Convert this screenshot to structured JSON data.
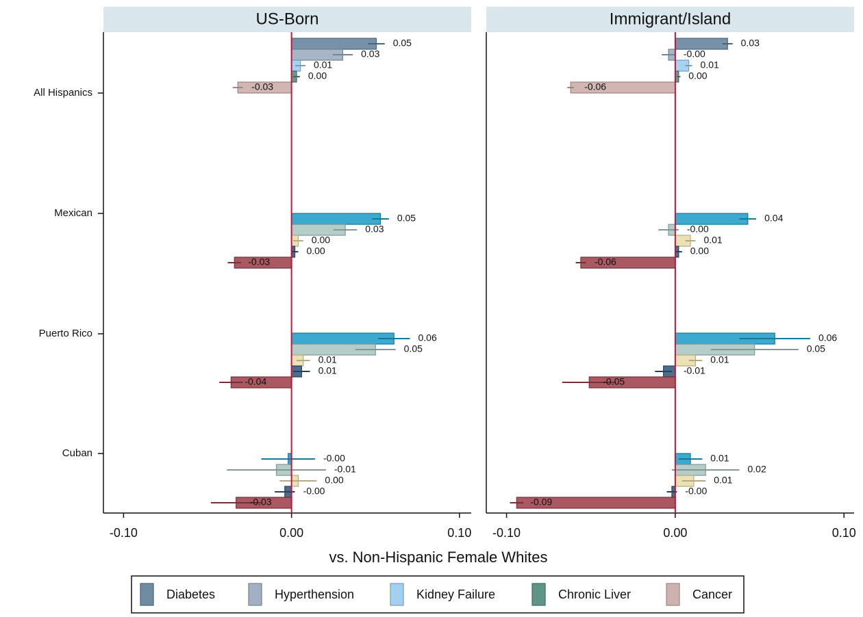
{
  "chart_data": [
    {
      "type": "bar",
      "orientation": "horizontal",
      "title": "US-Born",
      "categories": [
        "All Hispanics",
        "Mexican",
        "Puerto Rico",
        "Cuban"
      ],
      "xlabel": "vs. Non-Hispanic Female Whites",
      "xlim": [
        -0.112,
        0.107
      ],
      "xticks": [
        {
          "value": -0.1,
          "label": "-0.10"
        },
        {
          "value": 0,
          "label": "0.00"
        },
        {
          "value": 0.1,
          "label": "0.10"
        }
      ],
      "series": [
        {
          "name": "Diabetes",
          "colors": [
            "#5f7f99",
            "#1a9bc7",
            "#1a9bc7",
            "#1a9bc7"
          ],
          "values": [
            0.0505,
            0.053,
            0.061,
            -0.002
          ],
          "errors": [
            0.005,
            0.005,
            0.0095,
            0.016
          ],
          "value_labels": [
            "0.05",
            "0.05",
            "0.06",
            "-0.00"
          ]
        },
        {
          "name": "Hyperthension",
          "colors": [
            "#97a9bc",
            "#a7c4c0",
            "#a7c4c0",
            "#a7c4c0"
          ],
          "values": [
            0.0305,
            0.032,
            0.05,
            -0.009
          ],
          "errors": [
            0.006,
            0.007,
            0.012,
            0.0295
          ],
          "value_labels": [
            "0.03",
            "0.03",
            "0.05",
            "-0.01"
          ]
        },
        {
          "name": "Kidney Failure",
          "colors": [
            "#98cbed",
            "#e8dca8",
            "#e8dca8",
            "#e8dca8"
          ],
          "values": [
            0.0053,
            0.004,
            0.007,
            0.004
          ],
          "errors": [
            0.003,
            0.003,
            0.004,
            0.011
          ],
          "value_labels": [
            "0.01",
            "0.00",
            "0.01",
            "0.00"
          ]
        },
        {
          "name": "Chronic Liver",
          "colors": [
            "#4e8a7a",
            "#2e5377",
            "#2e5377",
            "#2e5377"
          ],
          "values": [
            0.003,
            0.002,
            0.006,
            -0.004
          ],
          "errors": [
            0.002,
            0.002,
            0.005,
            0.006
          ],
          "value_labels": [
            "0.00",
            "0.00",
            "0.01",
            "-0.00"
          ]
        },
        {
          "name": "Cancer",
          "colors": [
            "#c9aaa6",
            "#9b3c48",
            "#9b3c48",
            "#9b3c48"
          ],
          "values": [
            -0.032,
            -0.034,
            -0.036,
            -0.033
          ],
          "errors": [
            0.003,
            0.004,
            0.007,
            0.015
          ],
          "value_labels": [
            "-0.03",
            "-0.03",
            "-0.04",
            "-0.03"
          ]
        }
      ]
    },
    {
      "type": "bar",
      "orientation": "horizontal",
      "title": "Immigrant/Island",
      "xlim": [
        -0.112,
        0.106
      ],
      "xticks": [
        {
          "value": -0.1,
          "label": "-0.10"
        },
        {
          "value": 0,
          "label": "0.00"
        },
        {
          "value": 0.1,
          "label": "0.10"
        }
      ],
      "series": [
        {
          "colors": [
            "#5f7f99",
            "#1a9bc7",
            "#1a9bc7",
            "#1a9bc7"
          ],
          "values": [
            0.031,
            0.043,
            0.059,
            0.009
          ],
          "errors": [
            0.003,
            0.005,
            0.021,
            0.007
          ],
          "value_labels": [
            "0.03",
            "0.04",
            "0.06",
            "0.01"
          ]
        },
        {
          "colors": [
            "#97a9bc",
            "#a7c4c0",
            "#a7c4c0",
            "#a7c4c0"
          ],
          "values": [
            -0.004,
            -0.004,
            0.047,
            0.018
          ],
          "errors": [
            0.004,
            0.006,
            0.026,
            0.02
          ],
          "value_labels": [
            "-0.00",
            "-0.00",
            "0.05",
            "0.02"
          ]
        },
        {
          "colors": [
            "#98cbed",
            "#e8dca8",
            "#e8dca8",
            "#e8dca8"
          ],
          "values": [
            0.008,
            0.009,
            0.012,
            0.011
          ],
          "errors": [
            0.002,
            0.003,
            0.004,
            0.007
          ],
          "value_labels": [
            "0.01",
            "0.01",
            "0.01",
            "0.01"
          ]
        },
        {
          "colors": [
            "#4e8a7a",
            "#2e5377",
            "#2e5377",
            "#2e5377"
          ],
          "values": [
            0.002,
            0.002,
            -0.007,
            -0.002
          ],
          "errors": [
            0.001,
            0.002,
            0.005,
            0.003
          ],
          "value_labels": [
            "0.00",
            "0.00",
            "-0.01",
            "-0.00"
          ]
        },
        {
          "colors": [
            "#c9aaa6",
            "#9b3c48",
            "#9b3c48",
            "#9b3c48"
          ],
          "values": [
            -0.062,
            -0.056,
            -0.051,
            -0.094
          ],
          "errors": [
            0.002,
            0.003,
            0.016,
            0.004
          ],
          "value_labels": [
            "-0.06",
            "-0.06",
            "-0.05",
            "-0.09"
          ]
        }
      ]
    }
  ]
}
